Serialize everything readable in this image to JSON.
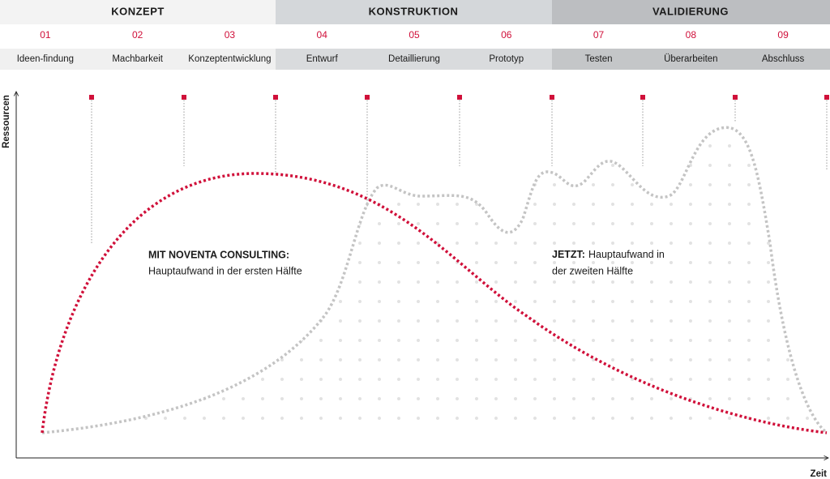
{
  "phases": [
    "KONZEPT",
    "KONSTRUKTION",
    "VALIDIERUNG"
  ],
  "steps": [
    {
      "number": "01",
      "label": "Ideen-findung"
    },
    {
      "number": "02",
      "label": "Machbarkeit"
    },
    {
      "number": "03",
      "label": "Konzeptentwicklung"
    },
    {
      "number": "04",
      "label": "Entwurf"
    },
    {
      "number": "05",
      "label": "Detaillierung"
    },
    {
      "number": "06",
      "label": "Prototyp"
    },
    {
      "number": "07",
      "label": "Testen"
    },
    {
      "number": "08",
      "label": "Überarbeiten"
    },
    {
      "number": "09",
      "label": "Abschluss"
    }
  ],
  "axes": {
    "y_label": "Ressourcen",
    "x_label": "Zeit"
  },
  "annotations": [
    {
      "title": "MIT NOVENTA CONSULTING:",
      "lines": [
        "Hauptaufwand in der ersten Hälfte"
      ]
    },
    {
      "title": "JETZT:",
      "lines": [
        "Hauptaufwand in",
        "der zweiten Hälfte"
      ]
    }
  ]
}
